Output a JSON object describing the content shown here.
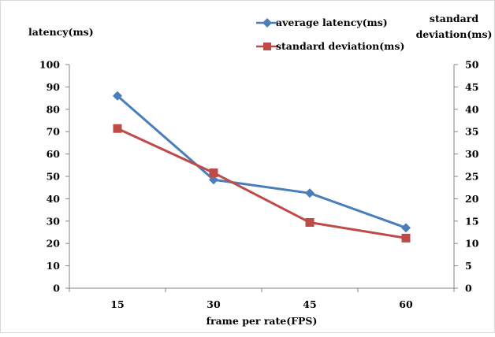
{
  "chart_data": {
    "type": "line",
    "categories": [
      "15",
      "30",
      "45",
      "60"
    ],
    "xlabel": "frame per rate(FPS)",
    "ylabel_left": "latency(ms)",
    "ylabel_right": [
      "standard",
      "deviation(ms)"
    ],
    "ylim_left": [
      0,
      100
    ],
    "ylim_right": [
      0,
      50
    ],
    "yticks_left": [
      0,
      10,
      20,
      30,
      40,
      50,
      60,
      70,
      80,
      90,
      100
    ],
    "yticks_right": [
      0,
      5,
      10,
      15,
      20,
      25,
      30,
      35,
      40,
      45,
      50
    ],
    "grid": false,
    "legend_position": "top-right",
    "series": [
      {
        "name": "average latency(ms)",
        "axis": "left",
        "values": [
          86,
          48.5,
          42.5,
          27
        ],
        "color": "#4a7ebb",
        "marker": "diamond"
      },
      {
        "name": "standard deviation(ms)",
        "axis": "right",
        "values": [
          35.7,
          25.8,
          14.7,
          11.2
        ],
        "color": "#be4b48",
        "marker": "square"
      }
    ]
  }
}
